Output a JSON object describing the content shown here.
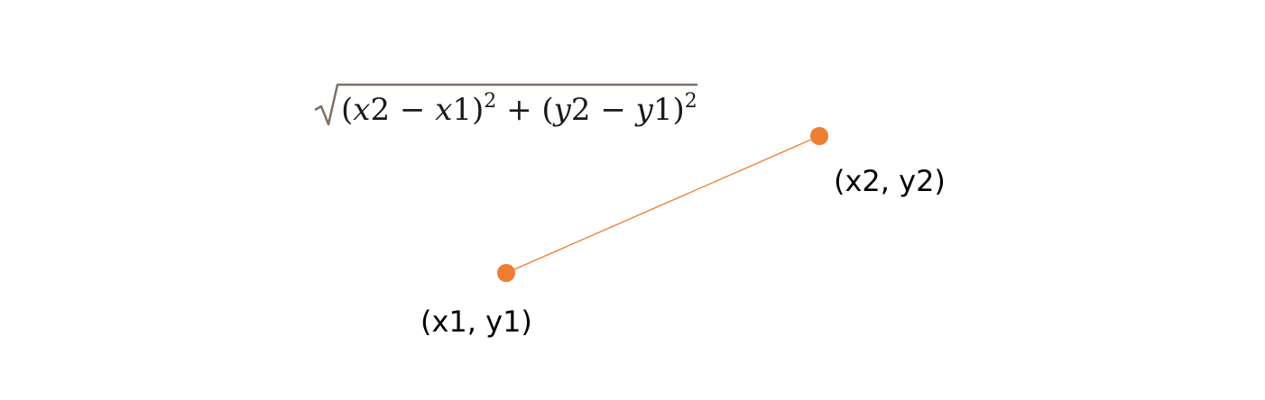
{
  "formula": {
    "radicand": [
      {
        "t": "(",
        "it": false
      },
      {
        "t": "x",
        "it": true
      },
      {
        "t": "2 − ",
        "it": false
      },
      {
        "t": "x",
        "it": true
      },
      {
        "t": "1)",
        "it": false
      },
      {
        "t": "2",
        "it": false,
        "sup": true
      },
      {
        "t": " + (",
        "it": false
      },
      {
        "t": "y",
        "it": true
      },
      {
        "t": "2 − ",
        "it": false
      },
      {
        "t": "y",
        "it": true
      },
      {
        "t": "1)",
        "it": false
      },
      {
        "t": "2",
        "it": false,
        "sup": true
      }
    ]
  },
  "points": {
    "p1": {
      "label": "(x1, y1)"
    },
    "p2": {
      "label": "(x2, y2)"
    }
  },
  "colors": {
    "accent": "#ED7D31",
    "radical": "#7F6F67",
    "text": "#000000"
  }
}
